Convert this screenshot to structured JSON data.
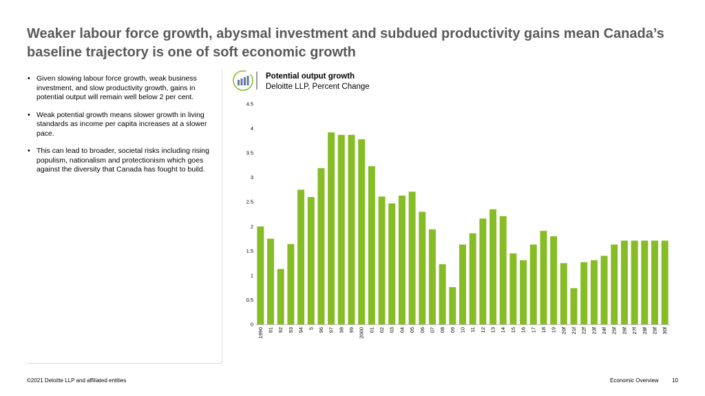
{
  "slide": {
    "title": "Weaker labour force growth, abysmal investment and subdued productivity gains mean Canada’s baseline trajectory is one of soft economic growth",
    "bullets": [
      "Given slowing labour force growth, weak business investment, and slow productivity growth, gains in potential output will remain well below 2 per cent.",
      "Weak potential growth means slower growth in living standards as income per capita increases at a slower pace.",
      "This can lead to broader, societal risks including rising populism, nationalism and protectionism which goes against the diversity that Canada has fought to build."
    ],
    "icon": "bar-chart-icon",
    "footer": {
      "copyright": "©2021 Deloitte LLP and affiliated entities",
      "section": "Economic Overview",
      "page": "10"
    }
  },
  "colors": {
    "bar": "#86bc25",
    "title": "#58595b",
    "icon_accent": "#86bc25",
    "icon_bars": "#62789a"
  },
  "chart_data": {
    "type": "bar",
    "title": "Potential output growth",
    "subtitle": "Deloitte LLP, Percent Change",
    "xlabel": "",
    "ylabel": "",
    "ylim": [
      0,
      4.5
    ],
    "yticks": [
      0,
      0.5,
      1,
      1.5,
      2,
      2.5,
      3,
      3.5,
      4,
      4.5
    ],
    "grid": false,
    "legend": "none",
    "categories": [
      "1990",
      "91",
      "92",
      "93",
      "94",
      "5",
      "96",
      "97",
      "98",
      "99",
      "2000",
      "01",
      "02",
      "03",
      "04",
      "05",
      "06",
      "07",
      "08",
      "09",
      "10",
      "11",
      "12",
      "13",
      "14",
      "15",
      "16",
      "17",
      "18",
      "19",
      "20f",
      "21f",
      "22f",
      "23f",
      "24f",
      "25f",
      "26f",
      "27f",
      "28f",
      "29f",
      "30f"
    ],
    "values": [
      2.0,
      1.75,
      1.13,
      1.64,
      2.75,
      2.6,
      3.19,
      3.92,
      3.87,
      3.87,
      3.78,
      3.23,
      2.61,
      2.47,
      2.63,
      2.71,
      2.3,
      1.94,
      1.23,
      0.76,
      1.63,
      1.86,
      2.16,
      2.35,
      2.21,
      1.45,
      1.31,
      1.63,
      1.91,
      1.8,
      1.25,
      0.74,
      1.27,
      1.31,
      1.4,
      1.63,
      1.71,
      1.71,
      1.71,
      1.71,
      1.71
    ]
  }
}
